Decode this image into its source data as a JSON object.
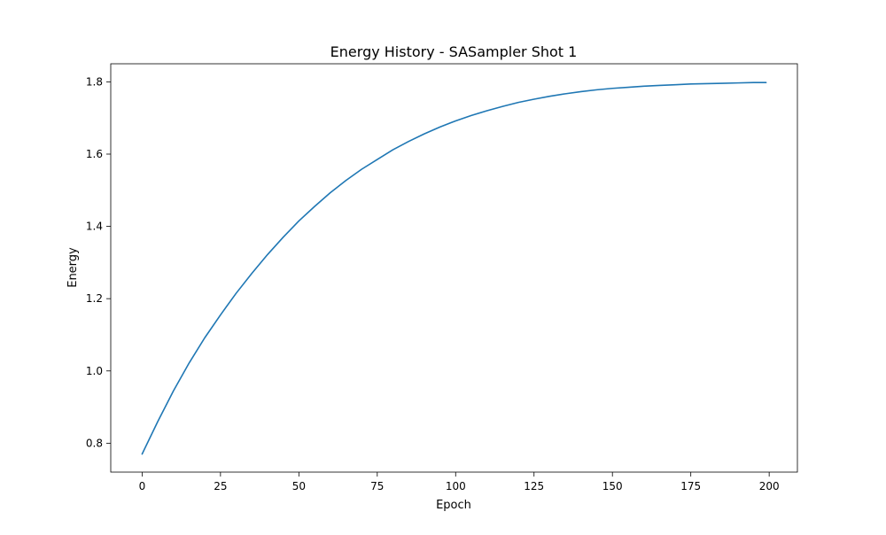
{
  "chart_data": {
    "type": "line",
    "title": "Energy History - SASampler Shot 1",
    "xlabel": "Epoch",
    "ylabel": "Energy",
    "xlim": [
      -10,
      209
    ],
    "ylim": [
      0.72,
      1.85
    ],
    "x_ticks": [
      0,
      25,
      50,
      75,
      100,
      125,
      150,
      175,
      200
    ],
    "y_ticks": [
      0.8,
      1.0,
      1.2,
      1.4,
      1.6,
      1.8
    ],
    "x_tick_labels": [
      "0",
      "25",
      "50",
      "75",
      "100",
      "125",
      "150",
      "175",
      "200"
    ],
    "y_tick_labels": [
      "0.8",
      "1.0",
      "1.2",
      "1.4",
      "1.6",
      "1.8"
    ],
    "grid": false,
    "legend": "none",
    "series": [
      {
        "color": "#1f77b4",
        "x": [
          0,
          5,
          10,
          15,
          20,
          25,
          30,
          35,
          40,
          45,
          50,
          55,
          60,
          65,
          70,
          75,
          80,
          85,
          90,
          95,
          100,
          105,
          110,
          115,
          120,
          125,
          130,
          135,
          140,
          145,
          150,
          155,
          160,
          165,
          170,
          175,
          180,
          185,
          190,
          195,
          199
        ],
        "y": [
          0.77,
          0.86,
          0.945,
          1.022,
          1.092,
          1.155,
          1.215,
          1.27,
          1.322,
          1.37,
          1.415,
          1.455,
          1.493,
          1.527,
          1.558,
          1.585,
          1.612,
          1.635,
          1.656,
          1.675,
          1.692,
          1.707,
          1.72,
          1.732,
          1.743,
          1.752,
          1.76,
          1.767,
          1.773,
          1.778,
          1.782,
          1.785,
          1.788,
          1.79,
          1.792,
          1.794,
          1.795,
          1.796,
          1.797,
          1.798,
          1.798
        ]
      }
    ]
  }
}
